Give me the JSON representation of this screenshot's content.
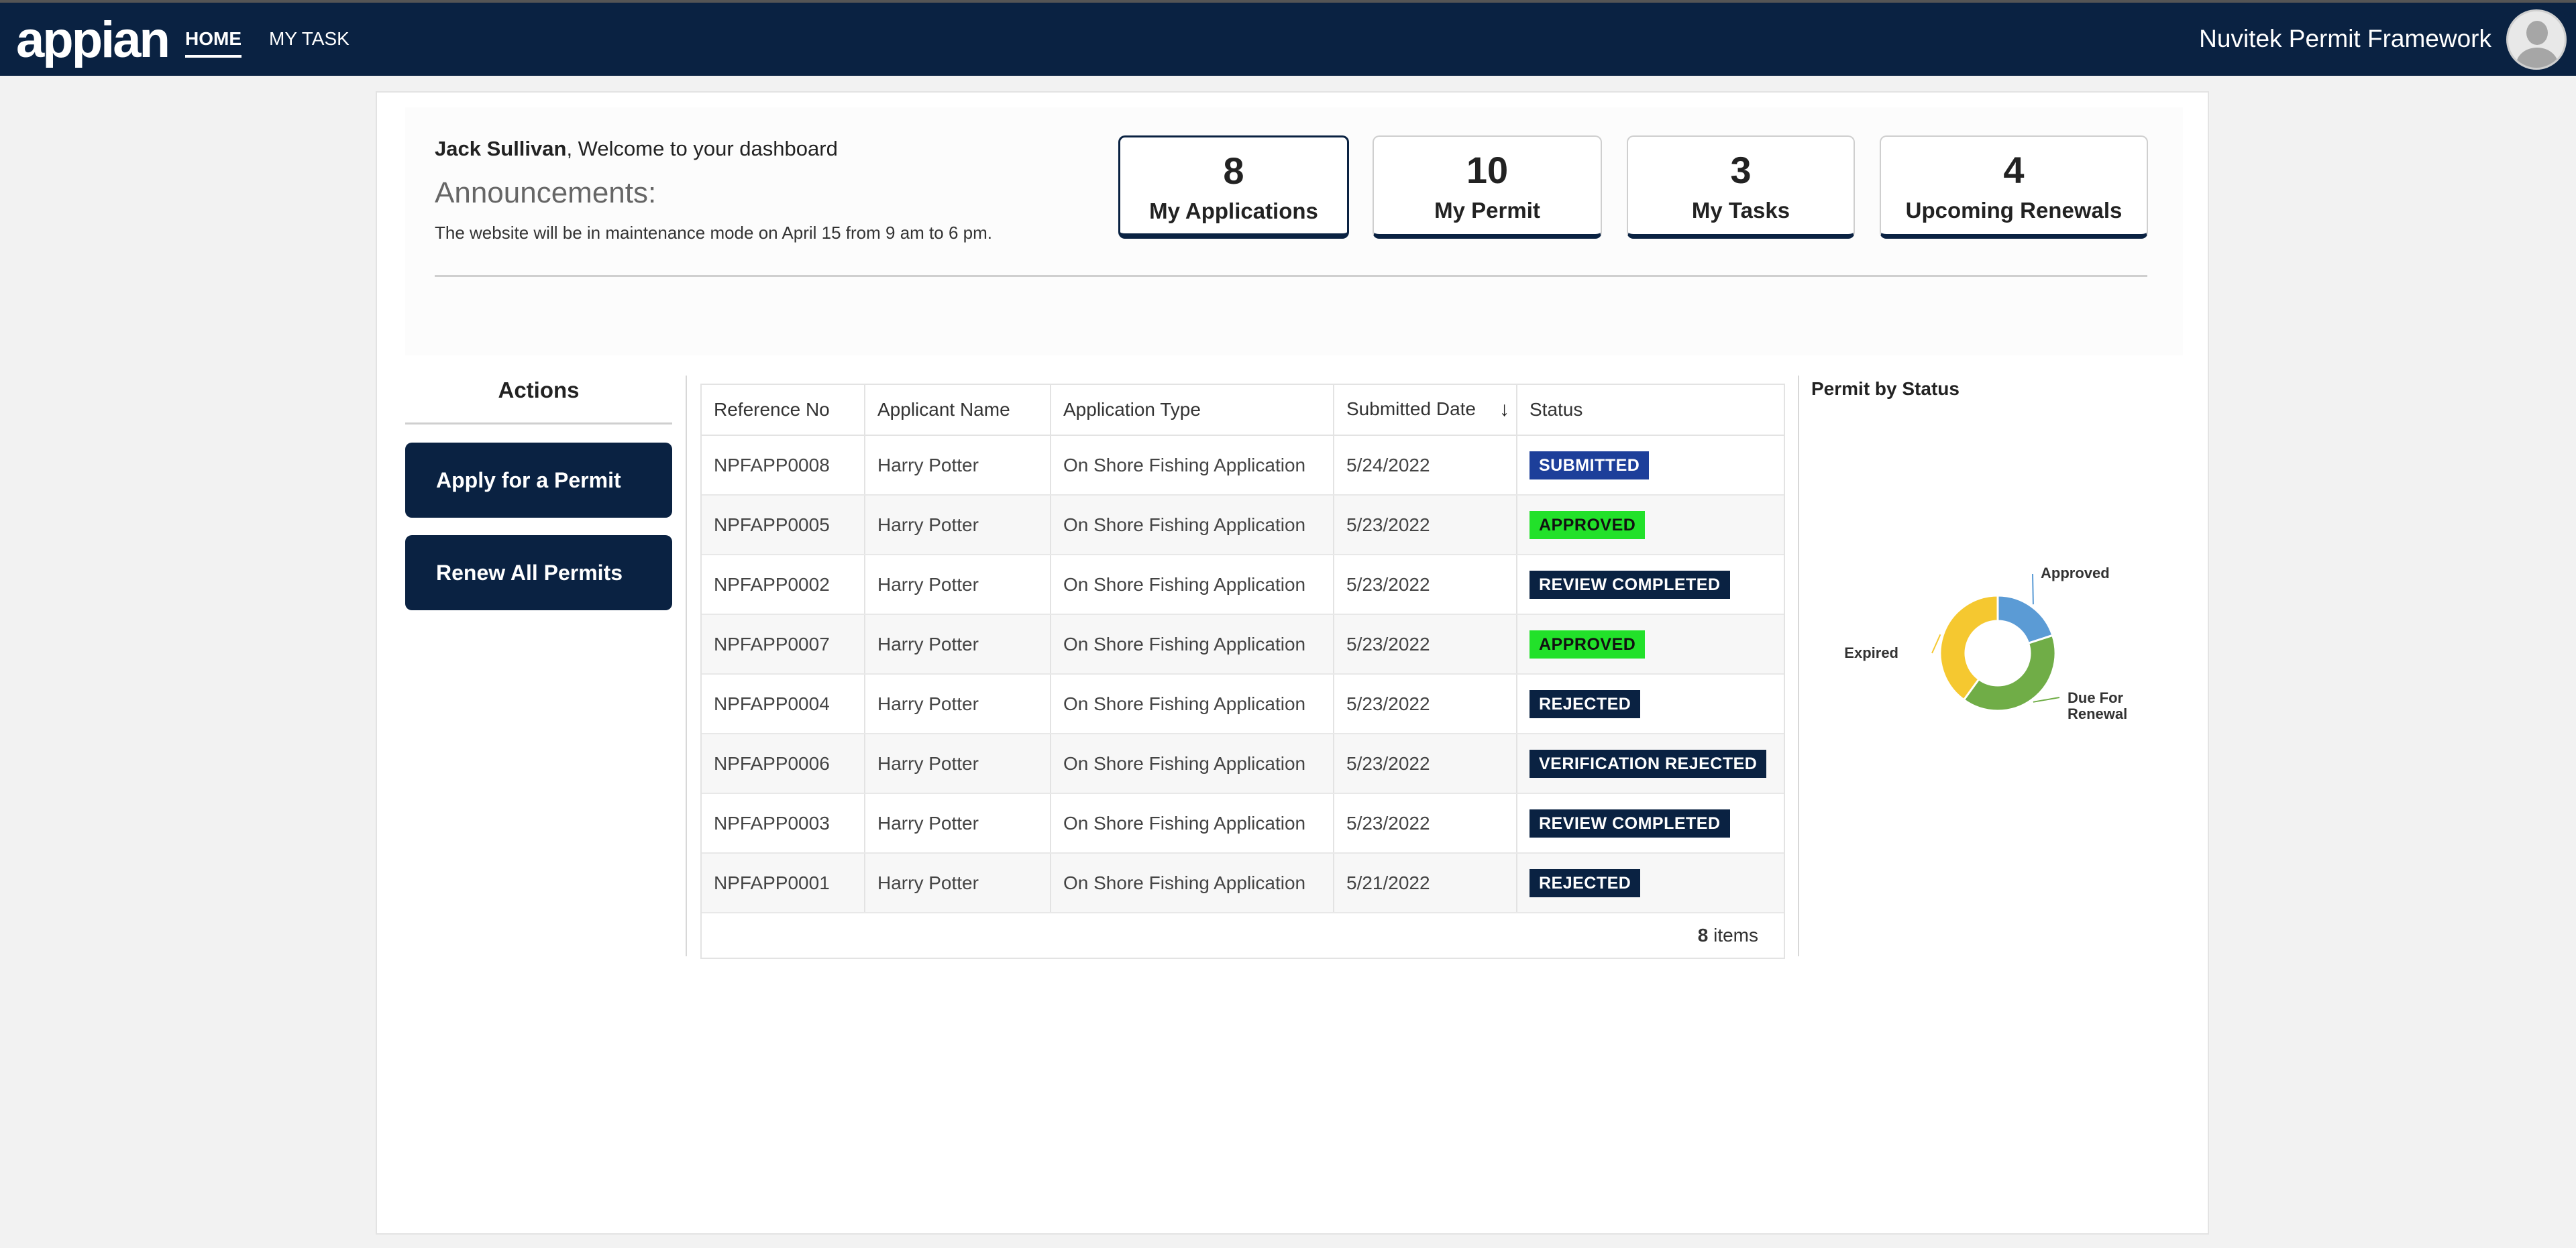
{
  "header": {
    "logo": "appian",
    "nav": [
      {
        "label": "HOME",
        "active": true
      },
      {
        "label": "MY TASK",
        "active": false
      }
    ],
    "app_name": "Nuvitek Permit Framework"
  },
  "dashboard": {
    "user_name": "Jack Sullivan",
    "welcome_suffix": ", Welcome to your dashboard",
    "announcements_title": "Announcements:",
    "announcement_text": "The website will be in maintenance mode on April 15 from 9 am to 6 pm."
  },
  "stats": [
    {
      "value": "8",
      "label": "My Applications",
      "active": true
    },
    {
      "value": "10",
      "label": "My Permit",
      "active": false
    },
    {
      "value": "3",
      "label": "My Tasks",
      "active": false
    },
    {
      "value": "4",
      "label": "Upcoming Renewals",
      "active": false
    }
  ],
  "actions": {
    "title": "Actions",
    "buttons": [
      "Apply for a Permit",
      "Renew All Permits"
    ]
  },
  "grid": {
    "columns": [
      "Reference No",
      "Applicant Name",
      "Application Type",
      "Submitted Date",
      "Status"
    ],
    "sorted_column": "Submitted Date",
    "rows": [
      {
        "ref": "NPFAPP0008",
        "name": "Harry Potter",
        "type": "On Shore Fishing Application",
        "date": "5/24/2022",
        "status": "SUBMITTED",
        "status_color": "#1d3f9a",
        "status_text_color": "#ffffff"
      },
      {
        "ref": "NPFAPP0005",
        "name": "Harry Potter",
        "type": "On Shore Fishing Application",
        "date": "5/23/2022",
        "status": "APPROVED",
        "status_color": "#22e12a",
        "status_text_color": "#111111"
      },
      {
        "ref": "NPFAPP0002",
        "name": "Harry Potter",
        "type": "On Shore Fishing Application",
        "date": "5/23/2022",
        "status": "REVIEW COMPLETED",
        "status_color": "#0a2242",
        "status_text_color": "#ffffff"
      },
      {
        "ref": "NPFAPP0007",
        "name": "Harry Potter",
        "type": "On Shore Fishing Application",
        "date": "5/23/2022",
        "status": "APPROVED",
        "status_color": "#22e12a",
        "status_text_color": "#111111"
      },
      {
        "ref": "NPFAPP0004",
        "name": "Harry Potter",
        "type": "On Shore Fishing Application",
        "date": "5/23/2022",
        "status": "REJECTED",
        "status_color": "#0a2242",
        "status_text_color": "#ffffff"
      },
      {
        "ref": "NPFAPP0006",
        "name": "Harry Potter",
        "type": "On Shore Fishing Application",
        "date": "5/23/2022",
        "status": "VERIFICATION REJECTED",
        "status_color": "#0a2242",
        "status_text_color": "#ffffff"
      },
      {
        "ref": "NPFAPP0003",
        "name": "Harry Potter",
        "type": "On Shore Fishing Application",
        "date": "5/23/2022",
        "status": "REVIEW COMPLETED",
        "status_color": "#0a2242",
        "status_text_color": "#ffffff"
      },
      {
        "ref": "NPFAPP0001",
        "name": "Harry Potter",
        "type": "On Shore Fishing Application",
        "date": "5/21/2022",
        "status": "REJECTED",
        "status_color": "#0a2242",
        "status_text_color": "#ffffff"
      }
    ],
    "item_count": "8",
    "item_suffix": " items"
  },
  "chart_data": {
    "type": "pie",
    "title": "Permit by Status",
    "slices": [
      {
        "label": "Approved",
        "value": 2,
        "color": "#5b9bd5"
      },
      {
        "label": "Due For Renewal",
        "value": 4,
        "color": "#70ad47"
      },
      {
        "label": "Expired",
        "value": 4,
        "color": "#f5c830"
      }
    ],
    "donut": true,
    "legend": "none"
  }
}
